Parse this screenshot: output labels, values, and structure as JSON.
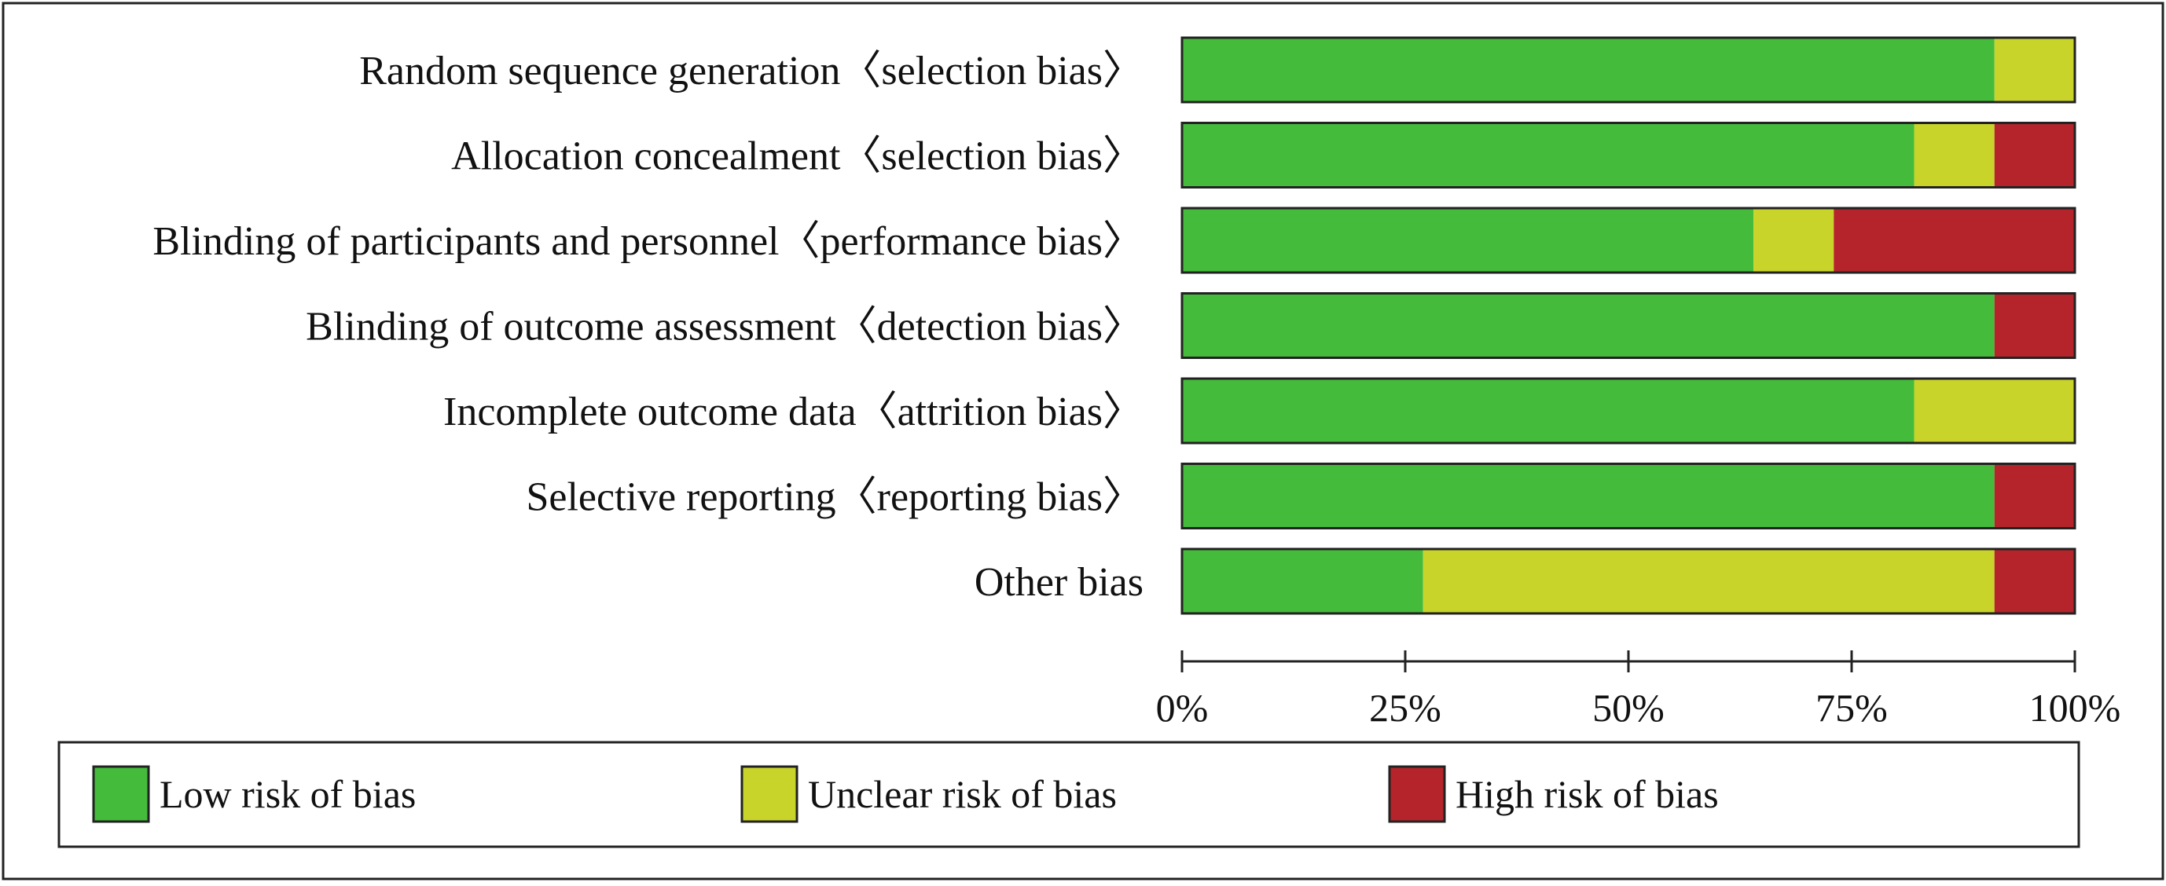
{
  "chart_data": {
    "type": "bar",
    "orientation": "horizontal",
    "stacked": true,
    "title": "",
    "xlabel": "",
    "ylabel": "",
    "xlim": [
      0,
      100
    ],
    "x_ticks": [
      "0%",
      "25%",
      "50%",
      "75%",
      "100%"
    ],
    "x_tick_values": [
      0,
      25,
      50,
      75,
      100
    ],
    "grid": false,
    "legend_position": "bottom",
    "categories": [
      "Random sequence generation〈selection bias〉",
      "Allocation concealment〈selection bias〉",
      "Blinding of participants and personnel〈performance bias〉",
      "Blinding of outcome assessment〈detection bias〉",
      "Incomplete outcome data〈attrition bias〉",
      "Selective reporting〈reporting bias〉",
      "Other bias"
    ],
    "series": [
      {
        "name": "Low risk of bias",
        "color": "#44bb3b",
        "values": [
          91,
          82,
          64,
          91,
          82,
          91,
          27
        ]
      },
      {
        "name": "Unclear risk of bias",
        "color": "#c9d42b",
        "values": [
          9,
          9,
          9,
          0,
          18,
          0,
          64
        ]
      },
      {
        "name": "High risk of bias",
        "color": "#b5242b",
        "values": [
          0,
          9,
          27,
          9,
          0,
          9,
          9
        ]
      }
    ]
  }
}
